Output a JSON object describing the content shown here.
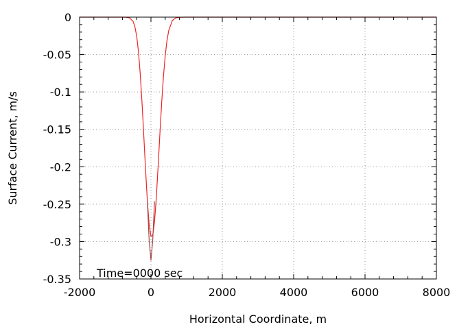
{
  "chart_data": {
    "type": "line",
    "xlabel": "Horizontal Coordinate, m",
    "ylabel": "Surface Current, m/s",
    "xlim": [
      -2000,
      8000
    ],
    "ylim": [
      -0.35,
      0
    ],
    "xticks": [
      -2000,
      0,
      2000,
      4000,
      6000,
      8000
    ],
    "xtick_labels": [
      "-2000",
      "0",
      "2000",
      "4000",
      "6000",
      "8000"
    ],
    "yticks": [
      0,
      -0.05,
      -0.1,
      -0.15,
      -0.2,
      -0.25,
      -0.3,
      -0.35
    ],
    "ytick_labels": [
      "0",
      "-0.05",
      "-0.1",
      "-0.15",
      "-0.2",
      "-0.25",
      "-0.3",
      "-0.35"
    ],
    "grid": true,
    "annotation": "Time=0000 sec",
    "series": [
      {
        "color": "#ee2222",
        "x": [
          -2000,
          -1000,
          -800,
          -700,
          -600,
          -500,
          -450,
          -400,
          -350,
          -300,
          -250,
          -200,
          -150,
          -100,
          -50,
          0,
          50,
          100,
          150,
          200,
          250,
          300,
          350,
          400,
          450,
          500,
          600,
          700,
          800,
          1000,
          2000,
          4000,
          6000,
          8000
        ],
        "y": [
          0,
          0,
          0,
          -0.0001,
          -0.0009,
          -0.0058,
          -0.0128,
          -0.0254,
          -0.0461,
          -0.0761,
          -0.1145,
          -0.159,
          -0.2049,
          -0.2462,
          -0.2771,
          -0.293,
          -0.2917,
          -0.2735,
          -0.2413,
          -0.2004,
          -0.1566,
          -0.115,
          -0.0795,
          -0.0514,
          -0.0311,
          -0.0176,
          -0.0045,
          -0.0009,
          -0.0002,
          0,
          0,
          0,
          0,
          0
        ]
      },
      {
        "color": "#a04848",
        "x": [
          -100,
          -50,
          0,
          50,
          100
        ],
        "y": [
          -0.2462,
          -0.2985,
          -0.325,
          -0.2985,
          -0.2462
        ]
      }
    ]
  }
}
